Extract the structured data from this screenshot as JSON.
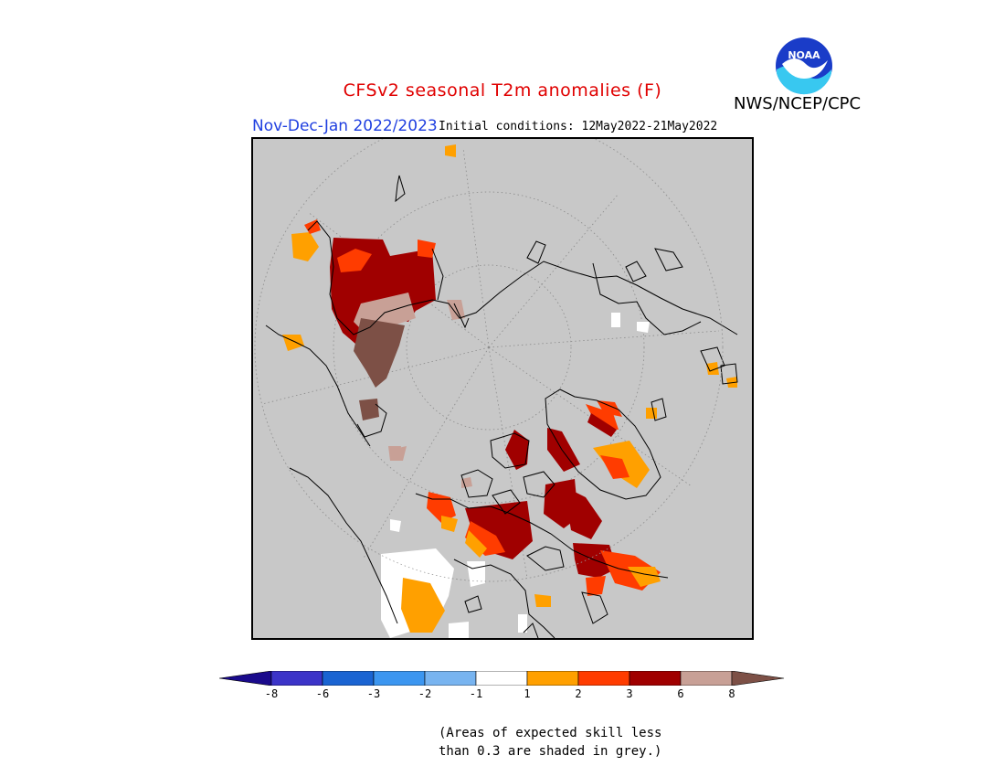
{
  "title": "CFSv2 seasonal T2m anomalies (F)",
  "org": "NWS/NCEP/CPC",
  "logo_text": "NOAA",
  "season": "Nov-Dec-Jan 2022/2023",
  "initial_conditions": "Initial conditions: 12May2022-21May2022",
  "note_line1": "(Areas of expected skill less",
  "note_line2": "than 0.3 are shaded in grey.)",
  "colors": {
    "grey_mask": "#c8c8c8",
    "cat_m8_below": "#1a0a8c",
    "cat_m8_m6": "#3c34c8",
    "cat_m6_m3": "#1a64d2",
    "cat_m3_m2": "#3c96f0",
    "cat_m2_m1": "#78b4f0",
    "cat_m1_1": "#ffffff",
    "cat_1_2": "#ffa000",
    "cat_2_3": "#ff3c00",
    "cat_3_6": "#a00000",
    "cat_6_8": "#c8a096",
    "cat_8_above": "#7d5046"
  },
  "colorbar": {
    "ticks": [
      "-8",
      "-6",
      "-3",
      "-2",
      "-1",
      "1",
      "2",
      "3",
      "6",
      "8"
    ],
    "bins": [
      {
        "from": null,
        "to": -8,
        "color": "#1a0a8c"
      },
      {
        "from": -8,
        "to": -6,
        "color": "#3c34c8"
      },
      {
        "from": -6,
        "to": -3,
        "color": "#1a64d2"
      },
      {
        "from": -3,
        "to": -2,
        "color": "#3c96f0"
      },
      {
        "from": -2,
        "to": -1,
        "color": "#78b4f0"
      },
      {
        "from": -1,
        "to": 1,
        "color": "#ffffff"
      },
      {
        "from": 1,
        "to": 2,
        "color": "#ffa000"
      },
      {
        "from": 2,
        "to": 3,
        "color": "#ff3c00"
      },
      {
        "from": 3,
        "to": 6,
        "color": "#a00000"
      },
      {
        "from": 6,
        "to": 8,
        "color": "#c8a096"
      },
      {
        "from": 8,
        "to": null,
        "color": "#7d5046"
      }
    ]
  }
}
